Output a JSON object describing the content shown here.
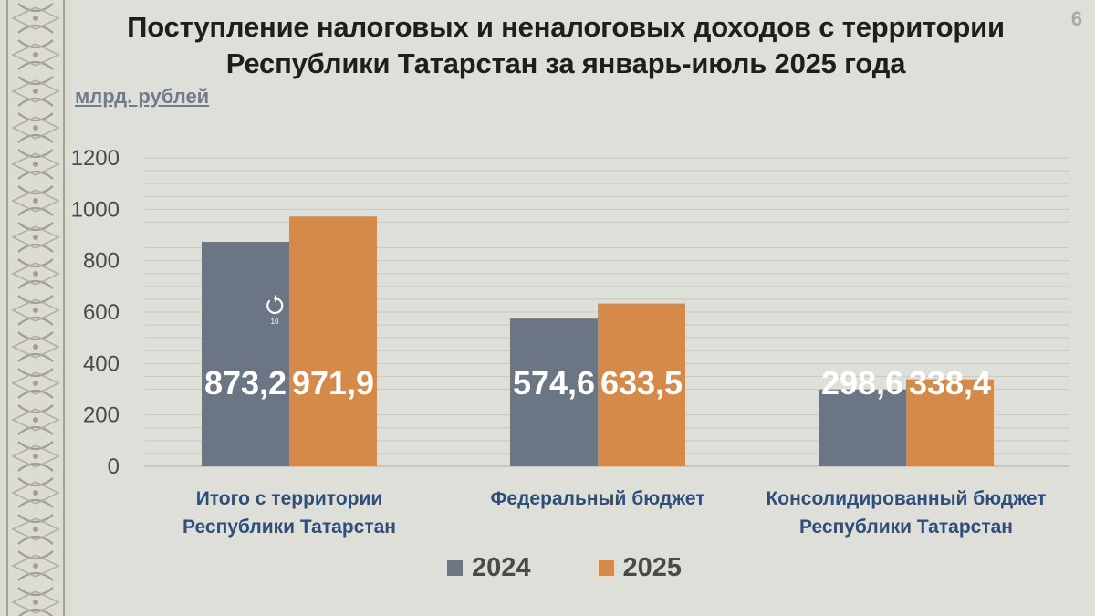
{
  "slide": {
    "title_line1": "Поступление налоговых и неналоговых доходов с территории",
    "title_line2": "Республики Татарстан за январь-июль 2025 года",
    "page_number": "6",
    "unit": "млрд. рублей"
  },
  "colors": {
    "series_2024": "#6b7584",
    "series_2025": "#d58a49",
    "background": "#dfdfd9",
    "category_text": "#2f4e7a"
  },
  "replay_control": {
    "icon": "replay-icon",
    "label": "10"
  },
  "chart_data": {
    "type": "bar",
    "title": "Поступление налоговых и неналоговых доходов с территории Республики Татарстан за январь-июль 2025 года",
    "ylabel": "млрд. рублей",
    "xlabel": "",
    "ylim": [
      0,
      1200
    ],
    "yticks": [
      0,
      200,
      400,
      600,
      800,
      1000,
      1200
    ],
    "grid": true,
    "legend_position": "bottom",
    "categories": [
      [
        "Итого с территории",
        "Республики Татарстан"
      ],
      [
        "Федеральный бюджет"
      ],
      [
        "Консолидированный бюджет",
        "Республики Татарстан"
      ]
    ],
    "series": [
      {
        "name": "2024",
        "values": [
          873.2,
          574.6,
          298.6
        ],
        "labels": [
          "873,2",
          "574,6",
          "298,6"
        ]
      },
      {
        "name": "2025",
        "values": [
          971.9,
          633.5,
          338.4
        ],
        "labels": [
          "971,9",
          "633,5",
          "338,4"
        ]
      }
    ]
  }
}
